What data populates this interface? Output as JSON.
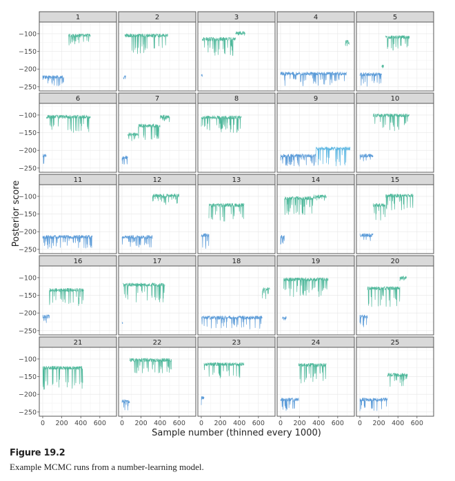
{
  "chart_data": {
    "type": "line",
    "layout": "facet-grid 5x5",
    "xlabel": "Sample number (thinned every 1000)",
    "ylabel": "Posterior score",
    "xlim": [
      -36,
      775
    ],
    "ylim": [
      -262,
      -67
    ],
    "xticks": [
      0,
      200,
      400,
      600
    ],
    "yticks": [
      -100,
      -150,
      -200,
      -250
    ],
    "grid": true,
    "colors": {
      "blue": "#5b9bd8",
      "green": "#4fb89b",
      "lightblue": "#5bb6e2"
    },
    "panels": [
      {
        "label": "1",
        "segments": [
          {
            "color": "blue",
            "start": 0,
            "end": 220,
            "level": -218,
            "min": -248
          },
          {
            "color": "green",
            "start": 270,
            "end": 500,
            "level": -100,
            "min": -135
          }
        ]
      },
      {
        "label": "2",
        "segments": [
          {
            "color": "blue",
            "start": 15,
            "end": 40,
            "level": -218,
            "min": -245
          },
          {
            "color": "green",
            "start": 30,
            "end": 480,
            "level": -100,
            "min": -160
          }
        ]
      },
      {
        "label": "3",
        "segments": [
          {
            "color": "blue",
            "start": 0,
            "end": 15,
            "level": -215,
            "min": -230
          },
          {
            "color": "green",
            "start": 10,
            "end": 360,
            "level": -110,
            "min": -165
          },
          {
            "color": "green",
            "start": 360,
            "end": 460,
            "level": -93,
            "min": -105
          }
        ]
      },
      {
        "label": "4",
        "segments": [
          {
            "color": "blue",
            "start": 0,
            "end": 690,
            "level": -208,
            "min": -248
          },
          {
            "color": "green",
            "start": 680,
            "end": 720,
            "level": -118,
            "min": -135
          }
        ]
      },
      {
        "label": "5",
        "segments": [
          {
            "color": "blue",
            "start": 0,
            "end": 230,
            "level": -210,
            "min": -250
          },
          {
            "color": "green",
            "start": 230,
            "end": 250,
            "level": -188,
            "min": -195
          },
          {
            "color": "green",
            "start": 270,
            "end": 520,
            "level": -105,
            "min": -150
          }
        ]
      },
      {
        "label": "6",
        "segments": [
          {
            "color": "blue",
            "start": 0,
            "end": 40,
            "level": -210,
            "min": -238
          },
          {
            "color": "green",
            "start": 40,
            "end": 500,
            "level": -100,
            "min": -150
          }
        ]
      },
      {
        "label": "7",
        "segments": [
          {
            "color": "blue",
            "start": 0,
            "end": 60,
            "level": -215,
            "min": -240
          },
          {
            "color": "green",
            "start": 60,
            "end": 170,
            "level": -150,
            "min": -175
          },
          {
            "color": "green",
            "start": 170,
            "end": 400,
            "level": -125,
            "min": -170
          },
          {
            "color": "green",
            "start": 400,
            "end": 500,
            "level": -100,
            "min": -125
          }
        ]
      },
      {
        "label": "8",
        "segments": [
          {
            "color": "green",
            "start": 0,
            "end": 420,
            "level": -102,
            "min": -150
          }
        ]
      },
      {
        "label": "9",
        "segments": [
          {
            "color": "blue",
            "start": 0,
            "end": 370,
            "level": -210,
            "min": -245
          },
          {
            "color": "lightblue",
            "start": 370,
            "end": 730,
            "level": -190,
            "min": -245
          }
        ]
      },
      {
        "label": "10",
        "segments": [
          {
            "color": "blue",
            "start": 0,
            "end": 140,
            "level": -210,
            "min": -232
          },
          {
            "color": "green",
            "start": 140,
            "end": 520,
            "level": -96,
            "min": -145
          }
        ]
      },
      {
        "label": "11",
        "segments": [
          {
            "color": "blue",
            "start": 0,
            "end": 520,
            "level": -210,
            "min": -248
          }
        ]
      },
      {
        "label": "12",
        "segments": [
          {
            "color": "blue",
            "start": 0,
            "end": 320,
            "level": -210,
            "min": -245
          },
          {
            "color": "green",
            "start": 320,
            "end": 600,
            "level": -93,
            "min": -125
          }
        ]
      },
      {
        "label": "13",
        "segments": [
          {
            "color": "blue",
            "start": 0,
            "end": 80,
            "level": -205,
            "min": -248
          },
          {
            "color": "green",
            "start": 80,
            "end": 450,
            "level": -120,
            "min": -172
          }
        ]
      },
      {
        "label": "14",
        "segments": [
          {
            "color": "blue",
            "start": 0,
            "end": 40,
            "level": -210,
            "min": -238
          },
          {
            "color": "green",
            "start": 40,
            "end": 350,
            "level": -100,
            "min": -152
          },
          {
            "color": "green",
            "start": 350,
            "end": 480,
            "level": -95,
            "min": -112
          }
        ]
      },
      {
        "label": "15",
        "segments": [
          {
            "color": "blue",
            "start": 0,
            "end": 140,
            "level": -205,
            "min": -230
          },
          {
            "color": "green",
            "start": 140,
            "end": 270,
            "level": -120,
            "min": -170
          },
          {
            "color": "green",
            "start": 270,
            "end": 560,
            "level": -93,
            "min": -140
          }
        ]
      },
      {
        "label": "16",
        "segments": [
          {
            "color": "blue",
            "start": 0,
            "end": 70,
            "level": -205,
            "min": -238
          },
          {
            "color": "green",
            "start": 70,
            "end": 430,
            "level": -130,
            "min": -180
          }
        ]
      },
      {
        "label": "17",
        "segments": [
          {
            "color": "blue",
            "start": 0,
            "end": 8,
            "level": -225,
            "min": -232
          },
          {
            "color": "green",
            "start": 10,
            "end": 450,
            "level": -115,
            "min": -170
          }
        ]
      },
      {
        "label": "18",
        "segments": [
          {
            "color": "blue",
            "start": 0,
            "end": 640,
            "level": -208,
            "min": -248
          },
          {
            "color": "green",
            "start": 640,
            "end": 720,
            "level": -128,
            "min": -160
          }
        ]
      },
      {
        "label": "19",
        "segments": [
          {
            "color": "blue",
            "start": 20,
            "end": 60,
            "level": -210,
            "min": -235
          },
          {
            "color": "green",
            "start": 30,
            "end": 500,
            "level": -100,
            "min": -155
          }
        ]
      },
      {
        "label": "20",
        "segments": [
          {
            "color": "blue",
            "start": 0,
            "end": 80,
            "level": -205,
            "min": -245
          },
          {
            "color": "green",
            "start": 80,
            "end": 420,
            "level": -125,
            "min": -185
          },
          {
            "color": "green",
            "start": 420,
            "end": 490,
            "level": -95,
            "min": -110
          }
        ]
      },
      {
        "label": "21",
        "segments": [
          {
            "color": "green",
            "start": 0,
            "end": 420,
            "level": -120,
            "min": -188
          }
        ]
      },
      {
        "label": "22",
        "segments": [
          {
            "color": "blue",
            "start": 0,
            "end": 80,
            "level": -215,
            "min": -245
          },
          {
            "color": "green",
            "start": 80,
            "end": 520,
            "level": -98,
            "min": -140
          }
        ]
      },
      {
        "label": "23",
        "segments": [
          {
            "color": "blue",
            "start": 0,
            "end": 30,
            "level": -205,
            "min": -240
          },
          {
            "color": "green",
            "start": 30,
            "end": 450,
            "level": -110,
            "min": -160
          }
        ]
      },
      {
        "label": "24",
        "segments": [
          {
            "color": "blue",
            "start": 0,
            "end": 190,
            "level": -210,
            "min": -248
          },
          {
            "color": "green",
            "start": 190,
            "end": 480,
            "level": -112,
            "min": -170
          }
        ]
      },
      {
        "label": "25",
        "segments": [
          {
            "color": "blue",
            "start": 0,
            "end": 290,
            "level": -210,
            "min": -248
          },
          {
            "color": "green",
            "start": 290,
            "end": 500,
            "level": -140,
            "min": -178
          }
        ]
      }
    ]
  },
  "figure": {
    "label": "Figure 19.2",
    "caption": "Example MCMC runs from a number-learning model."
  }
}
